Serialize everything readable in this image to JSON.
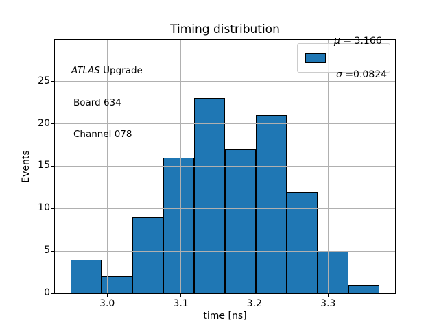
{
  "figure": {
    "title": "Timing distribution",
    "xlabel": "time [ns]",
    "ylabel": "Events",
    "annotation": {
      "line1_italic": "ATLAS",
      "line1_rest": " Upgrade",
      "line2": "Board 634",
      "line3": "Channel 078"
    },
    "legend": {
      "mu_symbol": "μ",
      "mu_rest": " = 3.166",
      "sigma_symbol": "σ",
      "sigma_rest": " =0.0824"
    }
  },
  "chart_data": {
    "type": "bar",
    "subtype": "histogram",
    "title": "Timing distribution",
    "xlabel": "time [ns]",
    "ylabel": "Events",
    "bin_edges": [
      2.95,
      2.992,
      3.034,
      3.076,
      3.118,
      3.16,
      3.202,
      3.244,
      3.286,
      3.328,
      3.37
    ],
    "counts": [
      4,
      2,
      9,
      16,
      23,
      17,
      21,
      12,
      5,
      1
    ],
    "total_events": 110,
    "xlim": [
      2.929,
      3.391
    ],
    "ylim": [
      0,
      29.9
    ],
    "xticks": [
      3.0,
      3.1,
      3.2,
      3.3
    ],
    "xtick_labels": [
      "3.0",
      "3.1",
      "3.2",
      "3.3"
    ],
    "yticks": [
      0,
      5,
      10,
      15,
      20,
      25
    ],
    "ytick_labels": [
      "0",
      "5",
      "10",
      "15",
      "20",
      "25"
    ],
    "grid": true,
    "grid_above_bars": true,
    "legend_position": "upper right",
    "legend_lines": [
      "μ = 3.166",
      "σ =0.0824"
    ],
    "annotation_lines": [
      "ATLAS Upgrade",
      "Board 634",
      "Channel 078"
    ],
    "stats": {
      "mu": 3.166,
      "sigma": 0.0824
    },
    "colors": {
      "bar_fill": "#1f77b4",
      "bar_edge": "#000000",
      "grid": "#b0b0b0",
      "frame": "#000000",
      "background": "#ffffff"
    }
  }
}
